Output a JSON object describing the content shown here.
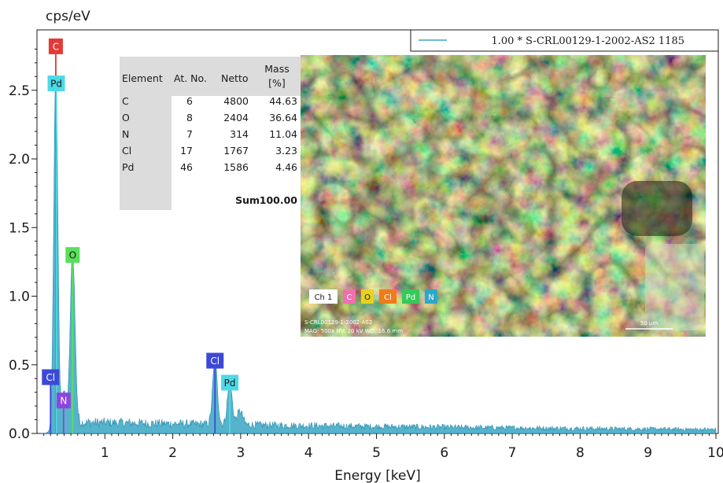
{
  "chart_data": {
    "type": "line",
    "ylabel": "cps/eV",
    "xlabel": "Energy [keV]",
    "xlim": [
      0,
      10
    ],
    "ylim": [
      0,
      2.9
    ],
    "x_ticks": [
      "1",
      "2",
      "3",
      "4",
      "5",
      "6",
      "7",
      "8",
      "9",
      "10"
    ],
    "y_ticks": [
      "0.0",
      "0.5",
      "1.0",
      "1.5",
      "2.0",
      "2.5"
    ],
    "legend": "1.00 * S-CRL00129-1-2002-AS2 1185",
    "series_color": "#3aa6c2",
    "peaks": [
      {
        "x": 0.277,
        "y": 2.6,
        "width": 0.03
      },
      {
        "x": 0.392,
        "y": 0.25,
        "width": 0.03
      },
      {
        "x": 0.525,
        "y": 1.25,
        "width": 0.035
      },
      {
        "x": 2.622,
        "y": 0.46,
        "width": 0.035
      },
      {
        "x": 2.84,
        "y": 0.3,
        "width": 0.035
      },
      {
        "x": 2.99,
        "y": 0.1,
        "width": 0.04
      }
    ],
    "background_level": 0.08,
    "element_markers": [
      {
        "label": "C",
        "x": 0.277,
        "y": 2.82,
        "color": "#e53935",
        "text_color": "#ffffff"
      },
      {
        "label": "Pd",
        "x": 0.284,
        "y": 2.55,
        "color": "#4dd9e8",
        "text_color": "#1a1a1a"
      },
      {
        "label": "O",
        "x": 0.525,
        "y": 1.3,
        "color": "#59e05a",
        "text_color": "#1a1a1a"
      },
      {
        "label": "Cl",
        "x": 0.2,
        "y": 0.41,
        "color": "#3c49d8",
        "text_color": "#ffffff"
      },
      {
        "label": "N",
        "x": 0.392,
        "y": 0.24,
        "color": "#8e44e0",
        "text_color": "#ffffff"
      },
      {
        "label": "Cl",
        "x": 2.622,
        "y": 0.53,
        "color": "#3c49d8",
        "text_color": "#ffffff"
      },
      {
        "label": "Pd",
        "x": 2.84,
        "y": 0.37,
        "color": "#4dd9e8",
        "text_color": "#1a1a1a"
      }
    ],
    "table": {
      "headers": [
        "Element",
        "At. No.",
        "Netto",
        "Mass",
        "[%]"
      ],
      "rows": [
        [
          "C",
          "6",
          "4800",
          "44.63"
        ],
        [
          "O",
          "8",
          "2404",
          "36.64"
        ],
        [
          "N",
          "7",
          "314",
          "11.04"
        ],
        [
          "Cl",
          "17",
          "1767",
          "3.23"
        ],
        [
          "Pd",
          "46",
          "1586",
          "4.46"
        ]
      ],
      "sum_label": "Sum",
      "sum_value": "100.00"
    }
  },
  "map_inset": {
    "legend_items": [
      {
        "label": "Ch 1",
        "color": "#ffffff",
        "text_color": "#1a1a1a"
      },
      {
        "label": "C",
        "color": "#f06fb0",
        "text_color": "#ffffff"
      },
      {
        "label": "O",
        "color": "#e8d21d",
        "text_color": "#1a1a1a"
      },
      {
        "label": "Cl",
        "color": "#f07a1c",
        "text_color": "#ffffff"
      },
      {
        "label": "Pd",
        "color": "#36c95a",
        "text_color": "#ffffff"
      },
      {
        "label": "N",
        "color": "#2fa7c9",
        "text_color": "#ffffff"
      }
    ],
    "info_line1": "S-CRL00129-1-2002-AS2",
    "info_line2": "MAG: 500x   HV: 20 kV   WD: 16.6 mm",
    "scale_text": "50 µm"
  }
}
